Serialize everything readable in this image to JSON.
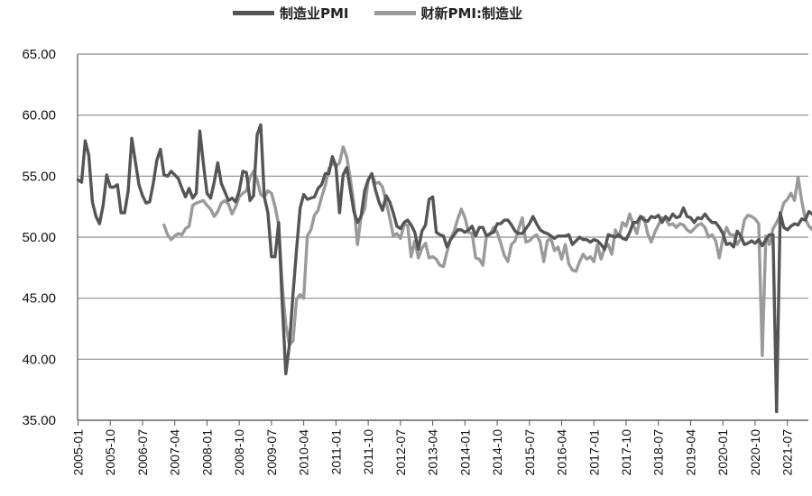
{
  "chart_data": {
    "type": "line",
    "title": "",
    "xlabel": "",
    "ylabel": "",
    "ylim": [
      35,
      65
    ],
    "yticks": [
      "65.00",
      "60.00",
      "55.00",
      "50.00",
      "45.00",
      "40.00",
      "35.00"
    ],
    "xticks": [
      "2005-01",
      "2005-10",
      "2006-07",
      "2007-04",
      "2008-01",
      "2008-10",
      "2009-07",
      "2010-04",
      "2011-01",
      "2011-10",
      "2012-07",
      "2013-04",
      "2014-01",
      "2014-10",
      "2015-07",
      "2016-04",
      "2017-01",
      "2017-10",
      "2018-07",
      "2019-04",
      "2020-01",
      "2020-10",
      "2021-07"
    ],
    "x_range": [
      "2005-01",
      "2021-12"
    ],
    "grid": "horizontal",
    "legend_position": "top",
    "series": [
      {
        "name": "制造业PMI",
        "color": "#555555",
        "start": "2005-01",
        "values": [
          54.7,
          54.5,
          57.9,
          56.7,
          52.9,
          51.7,
          51.1,
          52.6,
          55.1,
          54.1,
          54.1,
          54.3,
          52.0,
          52.0,
          53.8,
          58.1,
          56.2,
          54.3,
          53.4,
          52.8,
          52.9,
          54.4,
          56.3,
          57.2,
          55.1,
          55.0,
          55.4,
          55.1,
          54.8,
          54.0,
          53.3,
          54.0,
          53.2,
          53.6,
          58.7,
          56.0,
          53.6,
          53.2,
          54.5,
          56.1,
          54.4,
          53.7,
          53.0,
          53.2,
          52.9,
          53.8,
          55.4,
          55.3,
          53.0,
          53.4,
          58.4,
          59.2,
          53.3,
          52.0,
          48.4,
          48.4,
          51.2,
          44.6,
          38.8,
          41.2,
          45.3,
          49.0,
          52.4,
          53.5,
          53.1,
          53.2,
          53.3,
          54.0,
          54.3,
          55.2,
          55.2,
          56.6,
          55.8,
          52.0,
          55.1,
          55.7,
          53.9,
          52.1,
          51.2,
          51.7,
          53.8,
          54.7,
          55.2,
          53.9,
          52.9,
          52.2,
          53.4,
          52.9,
          52.0,
          50.9,
          50.7,
          51.2,
          51.4,
          51.0,
          50.4,
          49.0,
          50.5,
          51.0,
          53.1,
          53.3,
          50.4,
          50.2,
          50.1,
          49.2,
          49.8,
          50.2,
          50.6,
          50.6,
          50.4,
          50.6,
          50.9,
          50.1,
          50.8,
          50.8,
          50.1,
          50.3,
          50.4,
          51.1,
          51.1,
          51.4,
          51.4,
          51.0,
          50.5,
          50.3,
          50.3,
          50.7,
          51.1,
          51.7,
          51.1,
          50.6,
          50.4,
          50.3,
          50.1,
          49.9,
          50.1,
          50.1,
          50.1,
          50.2,
          49.4,
          49.7,
          50.0,
          49.8,
          49.8,
          49.6,
          49.8,
          49.7,
          49.4,
          49.0,
          50.2,
          50.1,
          50.0,
          50.2,
          49.9,
          49.8,
          50.4,
          51.2,
          51.2,
          51.7,
          51.4,
          51.3,
          51.7,
          51.6,
          51.8,
          51.2,
          51.7,
          51.4,
          51.9,
          51.6,
          51.7,
          52.4,
          51.7,
          51.6,
          51.2,
          51.6,
          51.5,
          51.9,
          51.5,
          51.2,
          51.2,
          50.8,
          50.3,
          49.4,
          49.5,
          49.2,
          50.5,
          50.1,
          49.4,
          49.5,
          49.7,
          49.5,
          49.8,
          49.3,
          49.8,
          50.2,
          50.2,
          35.7,
          52.0,
          50.8,
          50.6,
          50.9,
          51.1,
          51.0,
          51.5,
          51.4,
          52.1,
          51.9,
          51.3,
          50.6,
          51.9,
          51.1,
          51.0,
          50.9,
          50.4,
          50.1,
          49.6,
          49.2,
          50.1,
          50.1,
          50.4,
          50.0
        ]
      },
      {
        "name": "财新PMI:制造业",
        "color": "#9a9a9a",
        "start": "2005-01",
        "values": [
          null,
          null,
          null,
          null,
          null,
          null,
          null,
          null,
          null,
          null,
          null,
          null,
          null,
          null,
          null,
          null,
          null,
          null,
          null,
          null,
          null,
          null,
          null,
          null,
          51.0,
          50.2,
          49.8,
          50.1,
          50.3,
          50.2,
          50.7,
          50.9,
          52.6,
          52.8,
          52.9,
          53.0,
          52.6,
          52.3,
          51.7,
          52.1,
          52.8,
          53.0,
          52.7,
          51.9,
          52.5,
          53.3,
          53.6,
          53.8,
          54.9,
          55.4,
          54.7,
          53.5,
          53.3,
          53.8,
          53.6,
          52.5,
          51.0,
          46.1,
          42.8,
          41.2,
          41.5,
          44.9,
          45.3,
          45.0,
          50.1,
          50.6,
          51.8,
          52.2,
          53.3,
          54.2,
          55.6,
          56.1,
          55.8,
          56.1,
          57.4,
          56.6,
          54.8,
          52.7,
          49.4,
          51.7,
          52.3,
          54.7,
          55.2,
          54.4,
          54.5,
          54.1,
          52.9,
          51.6,
          50.1,
          50.3,
          49.9,
          51.0,
          51.0,
          48.4,
          49.7,
          48.3,
          49.1,
          49.5,
          48.3,
          48.4,
          48.2,
          47.7,
          47.6,
          48.8,
          49.9,
          50.5,
          51.5,
          52.3,
          51.6,
          50.4,
          50.3,
          48.3,
          48.2,
          47.7,
          50.1,
          50.2,
          50.8,
          50.4,
          49.5,
          48.5,
          48.0,
          49.4,
          49.7,
          50.7,
          51.6,
          49.6,
          49.7,
          50.0,
          50.2,
          49.6,
          48.0,
          49.7,
          49.9,
          48.9,
          49.2,
          48.2,
          49.4,
          47.8,
          47.3,
          47.2,
          48.0,
          48.6,
          48.2,
          48.4,
          48.0,
          49.4,
          48.2,
          49.1,
          49.4,
          48.6,
          50.6,
          50.0,
          51.2,
          50.9,
          51.9,
          51.0,
          50.3,
          51.7,
          51.6,
          50.3,
          49.6,
          50.4,
          51.0,
          51.6,
          51.5,
          51.0,
          51.1,
          50.8,
          51.1,
          51.0,
          50.6,
          50.4,
          50.7,
          51.0,
          51.1,
          50.8,
          50.0,
          50.2,
          49.7,
          48.3,
          49.9,
          50.8,
          50.2,
          50.2,
          49.4,
          49.9,
          51.4,
          51.8,
          51.7,
          51.5,
          51.1,
          40.3,
          50.1,
          49.4,
          50.7,
          51.2,
          51.8,
          52.8,
          53.1,
          53.6,
          53.0,
          54.9,
          53.0,
          51.5,
          50.9,
          50.6,
          51.9,
          52.0,
          51.3,
          51.9,
          50.3,
          49.2,
          50.6,
          50.9,
          49.9,
          49.1
        ]
      }
    ]
  }
}
